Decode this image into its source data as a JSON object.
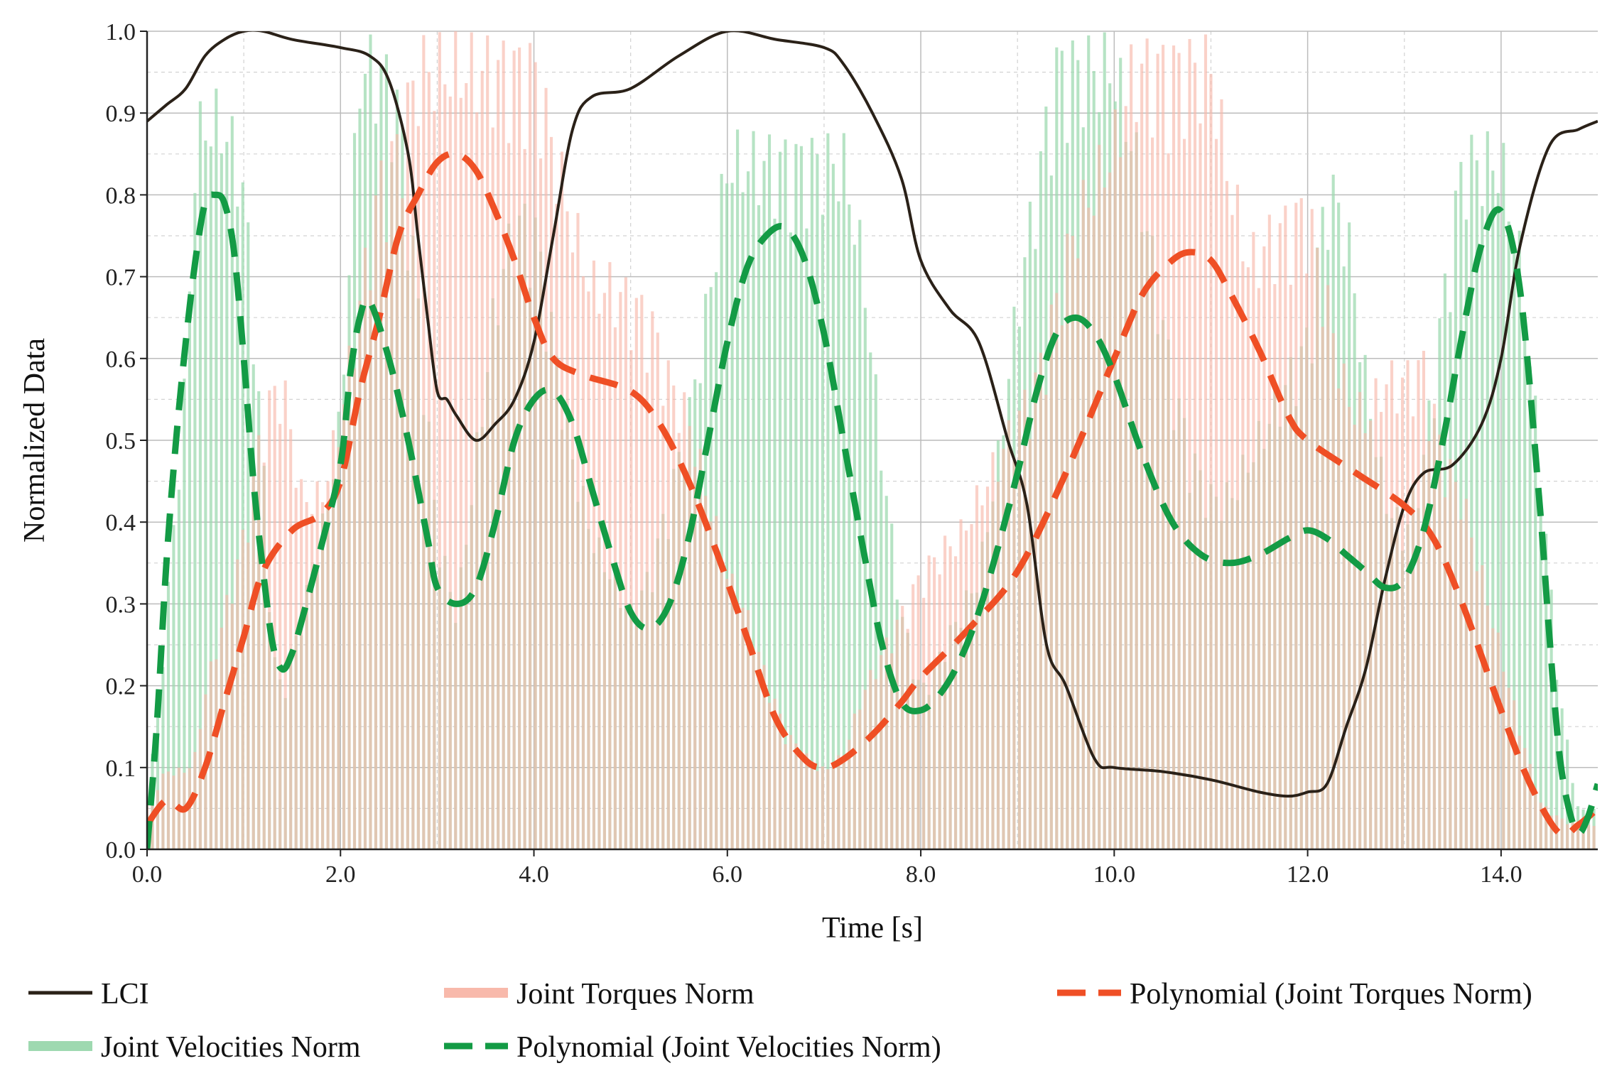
{
  "chart_data": {
    "type": "line",
    "title": "",
    "xlabel": "Time [s]",
    "ylabel": "Normalized Data",
    "xlim": [
      0,
      15
    ],
    "ylim": [
      0,
      1
    ],
    "grid": true,
    "x_ticks": [
      0,
      2,
      4,
      6,
      8,
      10,
      12,
      14
    ],
    "x_tick_labels": [
      "0.0",
      "2.0",
      "4.0",
      "6.0",
      "8.0",
      "10.0",
      "12.0",
      "14.0"
    ],
    "y_ticks": [
      0,
      0.1,
      0.2,
      0.3,
      0.4,
      0.5,
      0.6,
      0.7,
      0.8,
      0.9,
      1.0
    ],
    "y_tick_labels": [
      "0.0",
      "0.1",
      "0.2",
      "0.3",
      "0.4",
      "0.5",
      "0.6",
      "0.7",
      "0.8",
      "0.9",
      "1.0"
    ],
    "legend_position": "bottom",
    "series": [
      {
        "name": "Joint Velocities Norm",
        "style": "bars",
        "color": "#9ed9b0",
        "x": [
          0,
          0.2,
          0.4,
          0.5,
          0.6,
          0.8,
          1.0,
          1.2,
          1.3,
          1.4,
          1.6,
          1.8,
          2.0,
          2.2,
          2.4,
          2.6,
          2.8,
          3.0,
          3.2,
          3.4,
          3.6,
          3.8,
          4.0,
          4.2,
          4.4,
          4.6,
          4.8,
          5.0,
          5.2,
          5.4,
          5.6,
          5.8,
          6.0,
          6.2,
          6.4,
          6.6,
          6.8,
          7.0,
          7.2,
          7.4,
          7.6,
          7.8,
          8.0,
          8.2,
          8.4,
          8.6,
          8.8,
          9.0,
          9.2,
          9.4,
          9.6,
          9.8,
          10.0,
          10.2,
          10.4,
          10.6,
          10.8,
          11.0,
          11.2,
          11.4,
          11.6,
          11.8,
          12.0,
          12.2,
          12.4,
          12.6,
          12.8,
          13.0,
          13.2,
          13.4,
          13.6,
          13.8,
          14.0,
          14.2,
          14.4,
          14.6,
          14.8,
          15.0
        ],
        "values": [
          0.05,
          0.3,
          0.6,
          0.9,
          0.93,
          0.93,
          0.85,
          0.5,
          0.25,
          0.2,
          0.3,
          0.4,
          0.55,
          1.0,
          1.0,
          0.95,
          0.7,
          0.4,
          0.3,
          0.5,
          0.7,
          0.8,
          0.8,
          0.65,
          0.5,
          0.4,
          0.35,
          0.3,
          0.35,
          0.45,
          0.55,
          0.7,
          0.88,
          0.88,
          0.88,
          0.88,
          0.88,
          0.88,
          0.88,
          0.75,
          0.5,
          0.3,
          0.2,
          0.25,
          0.3,
          0.35,
          0.5,
          0.7,
          0.85,
          1.0,
          1.0,
          1.0,
          1.0,
          0.9,
          0.75,
          0.6,
          0.5,
          0.45,
          0.45,
          0.5,
          0.55,
          0.6,
          0.65,
          0.85,
          0.8,
          0.6,
          0.45,
          0.4,
          0.5,
          0.7,
          0.88,
          0.88,
          0.88,
          0.75,
          0.5,
          0.2,
          0.05,
          0.05
        ]
      },
      {
        "name": "Joint Torques Norm",
        "style": "bars",
        "color": "#f8b9ab",
        "x": [
          0,
          0.2,
          0.4,
          0.5,
          0.6,
          0.8,
          1.0,
          1.2,
          1.3,
          1.4,
          1.6,
          1.8,
          2.0,
          2.2,
          2.4,
          2.6,
          2.8,
          3.0,
          3.2,
          3.4,
          3.6,
          3.8,
          4.0,
          4.2,
          4.4,
          4.6,
          4.8,
          5.0,
          5.2,
          5.4,
          5.6,
          5.8,
          6.0,
          6.2,
          6.4,
          6.6,
          6.8,
          7.0,
          7.2,
          7.4,
          7.6,
          7.8,
          8.0,
          8.2,
          8.4,
          8.6,
          8.8,
          9.0,
          9.2,
          9.4,
          9.6,
          9.8,
          10.0,
          10.2,
          10.4,
          10.6,
          10.8,
          11.0,
          11.2,
          11.4,
          11.6,
          11.8,
          12.0,
          12.2,
          12.4,
          12.6,
          12.8,
          13.0,
          13.2,
          13.4,
          13.6,
          13.8,
          14.0,
          14.2,
          14.4,
          14.6,
          14.8,
          15.0
        ],
        "values": [
          0.06,
          0.1,
          0.1,
          0.12,
          0.2,
          0.3,
          0.4,
          0.55,
          0.58,
          0.6,
          0.45,
          0.45,
          0.55,
          0.7,
          0.85,
          0.9,
          1.0,
          1.0,
          1.0,
          1.0,
          1.0,
          1.0,
          1.0,
          0.9,
          0.8,
          0.72,
          0.72,
          0.7,
          0.68,
          0.6,
          0.55,
          0.45,
          0.35,
          0.3,
          0.22,
          0.15,
          0.12,
          0.1,
          0.12,
          0.2,
          0.25,
          0.3,
          0.35,
          0.38,
          0.4,
          0.45,
          0.5,
          0.55,
          0.6,
          0.7,
          0.8,
          0.85,
          0.9,
          1.0,
          1.0,
          1.0,
          1.0,
          1.0,
          0.85,
          0.75,
          0.78,
          0.8,
          0.82,
          0.7,
          0.58,
          0.55,
          0.6,
          0.6,
          0.62,
          0.5,
          0.45,
          0.35,
          0.25,
          0.15,
          0.06,
          0.04,
          0.03,
          0.03
        ]
      },
      {
        "name": "LCI",
        "style": "line",
        "color": "#2a2118",
        "x": [
          0,
          0.2,
          0.4,
          0.6,
          0.8,
          1.0,
          1.2,
          1.5,
          2.0,
          2.3,
          2.5,
          2.7,
          2.8,
          2.9,
          3.0,
          3.1,
          3.2,
          3.4,
          3.6,
          3.8,
          4.0,
          4.2,
          4.4,
          4.6,
          5.0,
          5.5,
          6.0,
          6.5,
          7.0,
          7.2,
          7.5,
          7.8,
          8.0,
          8.3,
          8.6,
          8.9,
          9.1,
          9.3,
          9.5,
          9.8,
          10.0,
          10.5,
          11.0,
          11.5,
          11.8,
          12.0,
          12.2,
          12.4,
          12.6,
          12.8,
          13.0,
          13.2,
          13.5,
          13.8,
          14.0,
          14.2,
          14.5,
          14.8,
          15.0
        ],
        "values": [
          0.89,
          0.91,
          0.93,
          0.97,
          0.99,
          1.0,
          1.0,
          0.99,
          0.98,
          0.97,
          0.94,
          0.85,
          0.75,
          0.65,
          0.56,
          0.55,
          0.53,
          0.5,
          0.52,
          0.55,
          0.62,
          0.75,
          0.88,
          0.92,
          0.93,
          0.97,
          1.0,
          0.99,
          0.98,
          0.96,
          0.9,
          0.82,
          0.72,
          0.66,
          0.62,
          0.5,
          0.42,
          0.25,
          0.2,
          0.11,
          0.1,
          0.095,
          0.085,
          0.07,
          0.065,
          0.07,
          0.08,
          0.15,
          0.22,
          0.33,
          0.42,
          0.46,
          0.47,
          0.52,
          0.6,
          0.74,
          0.86,
          0.88,
          0.89
        ]
      },
      {
        "name": "Polynomial (Joint Torques Norm)",
        "style": "dashed",
        "color": "#ef4f25",
        "x": [
          0,
          0.2,
          0.4,
          0.6,
          0.8,
          1.0,
          1.2,
          1.5,
          1.8,
          2.0,
          2.2,
          2.4,
          2.6,
          2.8,
          3.0,
          3.2,
          3.4,
          3.6,
          3.8,
          4.0,
          4.2,
          4.5,
          5.0,
          5.3,
          5.6,
          5.9,
          6.2,
          6.5,
          6.8,
          7.0,
          7.2,
          7.5,
          7.8,
          8.0,
          8.5,
          9.0,
          9.5,
          10.0,
          10.3,
          10.6,
          10.8,
          11.0,
          11.2,
          11.5,
          11.8,
          12.0,
          12.5,
          13.0,
          13.3,
          13.6,
          14.0,
          14.3,
          14.6,
          14.8,
          15.0
        ],
        "values": [
          0.03,
          0.06,
          0.05,
          0.1,
          0.18,
          0.26,
          0.34,
          0.39,
          0.41,
          0.45,
          0.56,
          0.65,
          0.75,
          0.8,
          0.84,
          0.85,
          0.83,
          0.78,
          0.72,
          0.65,
          0.6,
          0.58,
          0.56,
          0.52,
          0.45,
          0.36,
          0.26,
          0.16,
          0.11,
          0.1,
          0.11,
          0.14,
          0.18,
          0.21,
          0.27,
          0.34,
          0.46,
          0.6,
          0.68,
          0.72,
          0.73,
          0.72,
          0.68,
          0.61,
          0.53,
          0.5,
          0.46,
          0.42,
          0.38,
          0.3,
          0.17,
          0.08,
          0.02,
          0.03,
          0.05
        ]
      },
      {
        "name": "Polynomial (Joint Velocities Norm)",
        "style": "dashed",
        "color": "#139b45",
        "x": [
          0,
          0.1,
          0.2,
          0.3,
          0.4,
          0.5,
          0.6,
          0.7,
          0.8,
          0.9,
          1.0,
          1.1,
          1.2,
          1.3,
          1.4,
          1.5,
          1.6,
          1.8,
          2.0,
          2.1,
          2.2,
          2.3,
          2.5,
          2.7,
          2.9,
          3.0,
          3.2,
          3.4,
          3.6,
          3.8,
          4.0,
          4.2,
          4.4,
          4.6,
          4.8,
          5.0,
          5.2,
          5.4,
          5.6,
          5.8,
          6.0,
          6.2,
          6.4,
          6.6,
          6.8,
          7.0,
          7.2,
          7.4,
          7.6,
          7.8,
          8.0,
          8.2,
          8.4,
          8.6,
          8.8,
          9.0,
          9.2,
          9.4,
          9.6,
          9.8,
          10.0,
          10.3,
          10.6,
          10.9,
          11.2,
          11.5,
          11.8,
          12.0,
          12.2,
          12.4,
          12.6,
          12.8,
          13.0,
          13.2,
          13.4,
          13.6,
          13.8,
          14.0,
          14.2,
          14.4,
          14.5,
          14.6,
          14.7,
          14.8,
          14.9,
          15.0
        ],
        "values": [
          0.0,
          0.15,
          0.35,
          0.5,
          0.62,
          0.72,
          0.79,
          0.8,
          0.79,
          0.73,
          0.6,
          0.45,
          0.34,
          0.25,
          0.22,
          0.24,
          0.28,
          0.37,
          0.47,
          0.58,
          0.65,
          0.67,
          0.6,
          0.5,
          0.38,
          0.32,
          0.3,
          0.32,
          0.4,
          0.5,
          0.55,
          0.56,
          0.52,
          0.44,
          0.36,
          0.29,
          0.27,
          0.3,
          0.38,
          0.5,
          0.62,
          0.71,
          0.75,
          0.76,
          0.72,
          0.63,
          0.5,
          0.37,
          0.25,
          0.18,
          0.17,
          0.19,
          0.23,
          0.29,
          0.37,
          0.46,
          0.56,
          0.63,
          0.65,
          0.63,
          0.58,
          0.48,
          0.4,
          0.36,
          0.35,
          0.36,
          0.38,
          0.39,
          0.38,
          0.36,
          0.34,
          0.32,
          0.33,
          0.39,
          0.5,
          0.63,
          0.74,
          0.78,
          0.68,
          0.42,
          0.26,
          0.12,
          0.05,
          0.02,
          0.04,
          0.08
        ]
      }
    ]
  }
}
